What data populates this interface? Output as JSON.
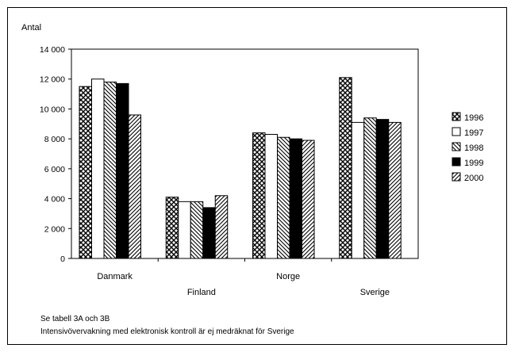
{
  "chart_data": {
    "type": "bar",
    "ylabel": "Antal",
    "ylim": [
      0,
      14000
    ],
    "yticks": [
      {
        "value": 0,
        "label": "0"
      },
      {
        "value": 2000,
        "label": "2 000"
      },
      {
        "value": 4000,
        "label": "4 000"
      },
      {
        "value": 6000,
        "label": "6 000"
      },
      {
        "value": 8000,
        "label": "8 000"
      },
      {
        "value": 10000,
        "label": "10 000"
      },
      {
        "value": 12000,
        "label": "12 000"
      },
      {
        "value": 14000,
        "label": "14 000"
      }
    ],
    "categories": [
      "Danmark",
      "Finland",
      "Norge",
      "Sverige"
    ],
    "series": [
      {
        "name": "1996",
        "values": [
          11500,
          4100,
          8400,
          12100
        ],
        "pattern": "crosshatch"
      },
      {
        "name": "1997",
        "values": [
          12000,
          3800,
          8300,
          9100
        ],
        "pattern": "white"
      },
      {
        "name": "1998",
        "values": [
          11800,
          3800,
          8100,
          9400
        ],
        "pattern": "diagonal-down"
      },
      {
        "name": "1999",
        "values": [
          11700,
          3400,
          8000,
          9300
        ],
        "pattern": "black"
      },
      {
        "name": "2000",
        "values": [
          9600,
          4200,
          7900,
          9100
        ],
        "pattern": "diagonal-up"
      }
    ],
    "legend_position": "right",
    "grid": false
  },
  "notes": [
    "Se tabell 3A och 3B",
    "Intensivövervakning med elektronisk kontroll är ej medräknat för Sverige"
  ],
  "colors": {
    "bar_stroke": "#000000",
    "background": "#ffffff"
  }
}
